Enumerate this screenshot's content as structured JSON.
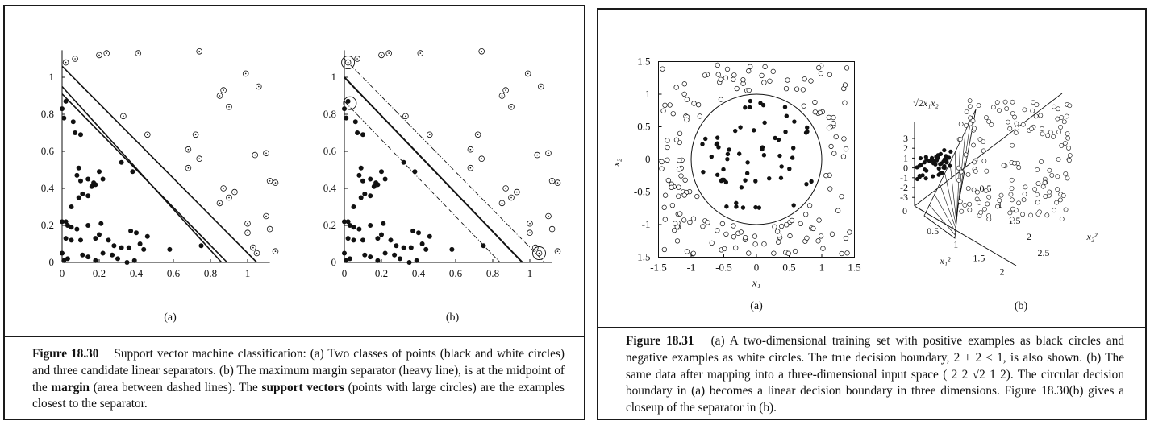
{
  "figure_18_30": {
    "caption": {
      "label": "Figure 18.30",
      "part1": "Support vector machine classification: (a) Two classes of points (black and white circles) and three candidate linear separators.  (b) The maximum margin separator (heavy line), is at the midpoint of the",
      "term_margin": "margin",
      "part2": "(area between dashed lines).  The",
      "term_support": "support vectors",
      "part3": "(points with large circles) are the examples closest to the separator."
    },
    "chart_data": [
      {
        "type": "scatter",
        "panel": "(a)",
        "xticks": [
          "0",
          "0.2",
          "0.4",
          "0.6",
          "0.8",
          "1"
        ],
        "yticks": [
          "0",
          "0.2",
          "0.4",
          "0.6",
          "0.8",
          "1"
        ],
        "xlim": [
          0,
          1.12
        ],
        "ylim": [
          0,
          1.12
        ],
        "series": [
          {
            "name": "black circles",
            "points": [
              [
                0.0,
                0.83
              ],
              [
                0.02,
                0.87
              ],
              [
                0.01,
                0.78
              ],
              [
                0.06,
                0.76
              ],
              [
                0.07,
                0.7
              ],
              [
                0.1,
                0.69
              ],
              [
                0.09,
                0.51
              ],
              [
                0.08,
                0.47
              ],
              [
                0.1,
                0.44
              ],
              [
                0.14,
                0.45
              ],
              [
                0.17,
                0.43
              ],
              [
                0.16,
                0.41
              ],
              [
                0.11,
                0.37
              ],
              [
                0.14,
                0.36
              ],
              [
                0.09,
                0.35
              ],
              [
                0.05,
                0.3
              ],
              [
                0.2,
                0.49
              ],
              [
                0.22,
                0.45
              ],
              [
                0.18,
                0.42
              ],
              [
                0.32,
                0.54
              ],
              [
                0.38,
                0.49
              ],
              [
                0.0,
                0.22
              ],
              [
                0.02,
                0.22
              ],
              [
                0.03,
                0.2
              ],
              [
                0.05,
                0.19
              ],
              [
                0.08,
                0.18
              ],
              [
                0.14,
                0.2
              ],
              [
                0.02,
                0.13
              ],
              [
                0.05,
                0.12
              ],
              [
                0.1,
                0.12
              ],
              [
                0.18,
                0.13
              ],
              [
                0.2,
                0.15
              ],
              [
                0.21,
                0.21
              ],
              [
                0.25,
                0.12
              ],
              [
                0.28,
                0.09
              ],
              [
                0.32,
                0.08
              ],
              [
                0.36,
                0.08
              ],
              [
                0.42,
                0.1
              ],
              [
                0.44,
                0.07
              ],
              [
                0.37,
                0.17
              ],
              [
                0.4,
                0.16
              ],
              [
                0.46,
                0.14
              ],
              [
                0.0,
                0.05
              ],
              [
                0.01,
                0.01
              ],
              [
                0.03,
                0.02
              ],
              [
                0.11,
                0.04
              ],
              [
                0.14,
                0.03
              ],
              [
                0.18,
                0.01
              ],
              [
                0.22,
                0.05
              ],
              [
                0.27,
                0.04
              ],
              [
                0.3,
                0.02
              ],
              [
                0.35,
                0.0
              ],
              [
                0.39,
                0.01
              ],
              [
                0.58,
                0.07
              ],
              [
                0.75,
                0.09
              ]
            ]
          },
          {
            "name": "white circles",
            "points": [
              [
                0.02,
                1.08
              ],
              [
                0.07,
                1.1
              ],
              [
                0.2,
                1.12
              ],
              [
                0.24,
                1.13
              ],
              [
                0.41,
                1.13
              ],
              [
                0.74,
                1.14
              ],
              [
                0.99,
                1.02
              ],
              [
                1.06,
                0.95
              ],
              [
                0.85,
                0.9
              ],
              [
                0.87,
                0.93
              ],
              [
                0.9,
                0.84
              ],
              [
                0.33,
                0.79
              ],
              [
                0.46,
                0.69
              ],
              [
                0.68,
                0.61
              ],
              [
                0.72,
                0.69
              ],
              [
                0.74,
                0.56
              ],
              [
                0.68,
                0.51
              ],
              [
                1.04,
                0.58
              ],
              [
                1.1,
                0.59
              ],
              [
                1.12,
                0.44
              ],
              [
                1.15,
                0.43
              ],
              [
                0.87,
                0.4
              ],
              [
                0.9,
                0.35
              ],
              [
                0.93,
                0.38
              ],
              [
                0.85,
                0.32
              ],
              [
                1.0,
                0.21
              ],
              [
                1.1,
                0.25
              ],
              [
                1.12,
                0.18
              ],
              [
                1.15,
                0.06
              ],
              [
                1.03,
                0.08
              ],
              [
                1.05,
                0.05
              ],
              [
                1.0,
                0.16
              ]
            ]
          }
        ],
        "lines": [
          {
            "name": "separator 1",
            "from": [
              0.0,
              0.95
            ],
            "to": [
              0.86,
              0.0
            ]
          },
          {
            "name": "separator 2",
            "from": [
              0.0,
              1.06
            ],
            "to": [
              1.05,
              0.0
            ]
          },
          {
            "name": "separator 3",
            "from": [
              0.0,
              0.91
            ],
            "to": [
              0.89,
              0.0
            ]
          }
        ],
        "sublabel": "(a)"
      },
      {
        "type": "scatter",
        "panel": "(b)",
        "xticks": [
          "0",
          "0.2",
          "0.4",
          "0.6",
          "0.8",
          "1"
        ],
        "yticks": [
          "0",
          "0.2",
          "0.4",
          "0.6",
          "0.8",
          "1"
        ],
        "xlim": [
          0,
          1.12
        ],
        "ylim": [
          0,
          1.12
        ],
        "series": "same points as (a)",
        "lines": [
          {
            "name": "max-margin separator (heavy)",
            "from": [
              0.0,
              1.0
            ],
            "to": [
              0.96,
              0.0
            ],
            "style": "solid"
          },
          {
            "name": "margin boundary upper",
            "from": [
              0.0,
              1.1
            ],
            "to": [
              1.08,
              0.0
            ],
            "style": "dashed"
          },
          {
            "name": "margin boundary lower",
            "from": [
              0.0,
              0.87
            ],
            "to": [
              0.84,
              0.0
            ],
            "style": "dashed"
          }
        ],
        "support_vectors": [
          [
            0.02,
            1.08
          ],
          [
            0.03,
            0.86
          ],
          [
            1.05,
            0.05
          ]
        ],
        "sublabel": "(b)"
      }
    ]
  },
  "figure_18_31": {
    "caption": {
      "label": "Figure 18.31",
      "line1": "(a) A two-dimensional training set with positive examples as black circles and negative examples as white circles.  The true decision boundary,",
      "math1": "2   +   2   ≤  1,",
      "line2": "is also shown.  (b) The same data after mapping into a three-dimensional input space",
      "math2": "(  2    2   √2  1   2).",
      "line3": "The circular decision boundary in (a) becomes a linear decision boundary in three dimensions. Figure 18.30(b) gives a closeup of the separator in (b)."
    },
    "chart_data": [
      {
        "type": "scatter",
        "panel": "(a)",
        "xlabel": "x1",
        "ylabel": "x2",
        "xticks": [
          "-1.5",
          "-1",
          "-0.5",
          "0",
          "0.5",
          "1",
          "1.5"
        ],
        "yticks": [
          "-1.5",
          "-1",
          "-0.5",
          "0",
          "0.5",
          "1",
          "1.5"
        ],
        "xlim": [
          -1.5,
          1.5
        ],
        "ylim": [
          -1.5,
          1.5
        ],
        "boundary": {
          "shape": "circle",
          "center": [
            0,
            0
          ],
          "radius": 1
        },
        "sublabel": "(a)"
      },
      {
        "type": "scatter",
        "panel": "(b) 3D",
        "zlabel": "√2x1x2",
        "zticks": [
          "3",
          "2",
          "1",
          "0",
          "-1",
          "-2",
          "-3"
        ],
        "x1sq_ticks": [
          "0",
          "0.5",
          "1",
          "1.5",
          "2"
        ],
        "x2sq_ticks": [
          "0.5",
          "1",
          "1.5",
          "2",
          "2.5"
        ],
        "x1sq_label": "x1²",
        "x2sq_label": "x2²",
        "sublabel": "(b)"
      }
    ]
  }
}
